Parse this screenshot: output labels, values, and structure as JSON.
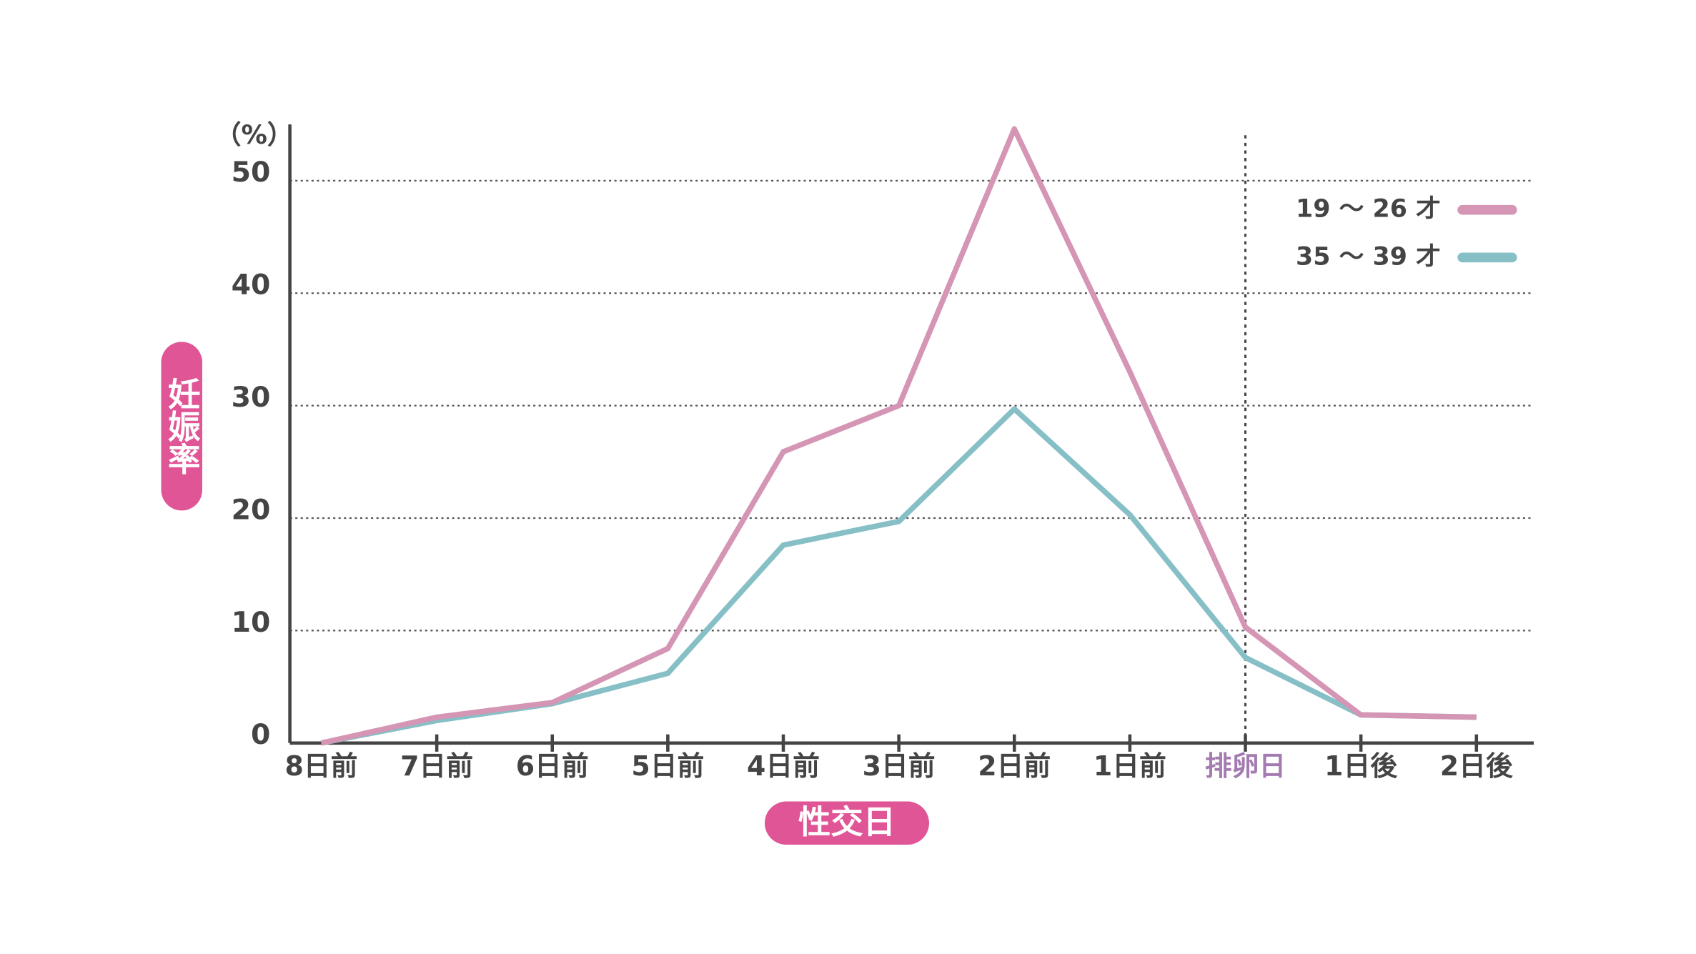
{
  "chart_data": {
    "type": "line",
    "unit_label": "（%）",
    "y_axis_label": "妊娠率",
    "x_axis_label": "性交日",
    "categories": [
      "8日前",
      "7日前",
      "6日前",
      "5日前",
      "4日前",
      "3日前",
      "2日前",
      "1日前",
      "排卵日",
      "1日後",
      "2日後"
    ],
    "series": [
      {
        "name": "19 〜 26 才",
        "color": "#d595b4",
        "values": [
          0,
          2.3,
          3.6,
          8.4,
          25.9,
          30,
          54.6,
          33,
          10.3,
          2.5,
          2.3
        ]
      },
      {
        "name": "35 〜 39 才",
        "color": "#86bfc6",
        "values": [
          0,
          2,
          3.5,
          6.2,
          17.6,
          19.7,
          29.7,
          20.3,
          7.6,
          2.5,
          2.3
        ]
      }
    ],
    "ylim": [
      0,
      55
    ],
    "yticks": [
      0,
      10,
      20,
      30,
      40,
      50
    ],
    "grid": true,
    "legend": "upper right",
    "highlight_index": 8,
    "highlight_color": "#a47bb0",
    "label_pill_color": "#e05595"
  }
}
